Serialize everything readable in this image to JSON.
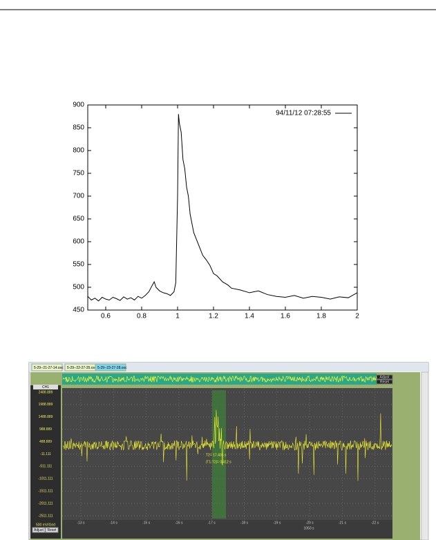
{
  "chart_data": {
    "type": "line",
    "x": [
      0.5,
      0.52,
      0.54,
      0.56,
      0.58,
      0.6,
      0.62,
      0.64,
      0.66,
      0.68,
      0.7,
      0.72,
      0.74,
      0.76,
      0.78,
      0.8,
      0.82,
      0.84,
      0.86,
      0.87,
      0.88,
      0.9,
      0.92,
      0.94,
      0.96,
      0.98,
      0.99,
      1.0,
      1.005,
      1.01,
      1.02,
      1.03,
      1.04,
      1.05,
      1.06,
      1.07,
      1.08,
      1.09,
      1.1,
      1.12,
      1.14,
      1.16,
      1.18,
      1.2,
      1.22,
      1.25,
      1.28,
      1.3,
      1.35,
      1.4,
      1.45,
      1.5,
      1.55,
      1.6,
      1.65,
      1.7,
      1.75,
      1.8,
      1.85,
      1.9,
      1.95,
      2.0
    ],
    "series": [
      {
        "name": "94/11/12 07:28:55",
        "color": "#000000",
        "values": [
          480,
          472,
          476,
          470,
          478,
          474,
          472,
          478,
          475,
          471,
          479,
          474,
          477,
          472,
          480,
          476,
          482,
          490,
          505,
          512,
          500,
          492,
          488,
          486,
          482,
          490,
          510,
          700,
          880,
          860,
          840,
          780,
          760,
          720,
          700,
          660,
          640,
          620,
          610,
          590,
          570,
          560,
          548,
          530,
          525,
          512,
          505,
          498,
          494,
          488,
          492,
          484,
          480,
          478,
          482,
          476,
          480,
          478,
          474,
          479,
          477,
          488
        ]
      }
    ],
    "xlim": [
      0.5,
      2
    ],
    "xticks": [
      0.6,
      0.8,
      1,
      1.2,
      1.4,
      1.6,
      1.8,
      2
    ],
    "ylim": [
      450,
      900
    ],
    "yticks": [
      450,
      500,
      550,
      600,
      650,
      700,
      750,
      800,
      850,
      900
    ],
    "legend": "upper right"
  },
  "screenshot": {
    "tabs": [
      "5-29--21-27-14.osc",
      "5-29--22-27-35.osc",
      "5-29--23-27-28.osc"
    ],
    "buttons": [
      "Adjust",
      "Reset"
    ],
    "channel": "CH1",
    "y_labels": [
      "2488.889",
      "1988.889",
      "1488.889",
      "988.889",
      "488.889",
      "-11.111",
      "-511.111",
      "-1011.111",
      "-1511.111",
      "-2011.111",
      "-2511.111"
    ],
    "scale": "500 mV/Grid",
    "bottom_buttons": [
      "Adjust",
      "Reset"
    ],
    "cursor_labels": [
      "T2= 17.405 s",
      "|T1-T2|= 0.412 s"
    ],
    "x_labels": [
      "-13 s",
      "-14 s",
      "-15 s",
      "-16 s",
      "-17 s",
      "-18 s",
      "-19 s",
      "-20 s",
      "-21 s",
      "-22 s"
    ],
    "x_caption": "1050 s"
  }
}
